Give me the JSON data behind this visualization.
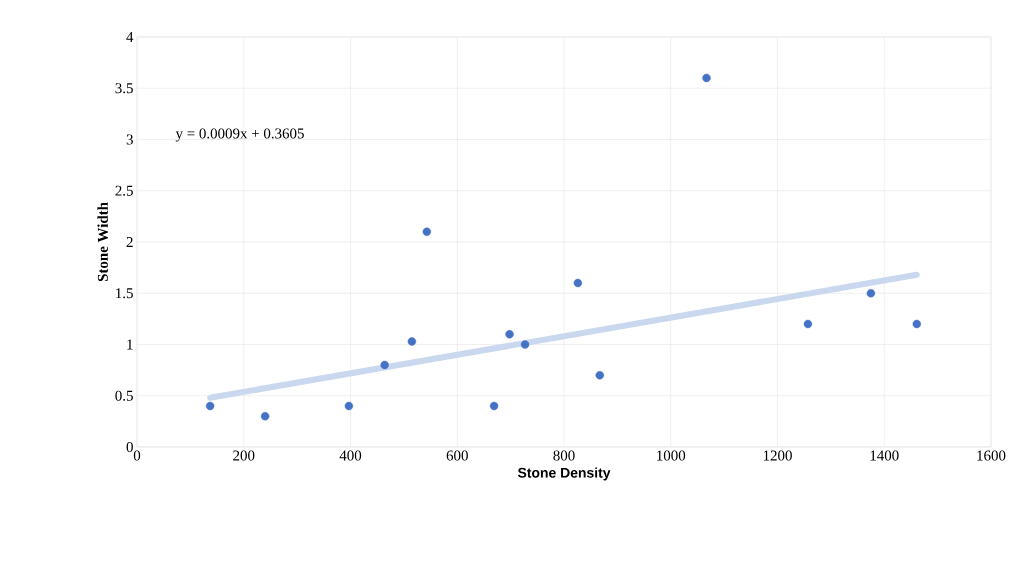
{
  "chart_data": {
    "type": "scatter",
    "xlabel": "Stone Density",
    "ylabel": "Stone Width",
    "annotations": [
      "y = 0.0009x + 0.3605"
    ],
    "xlim": [
      0,
      1600
    ],
    "ylim": [
      0,
      4
    ],
    "xticks": [
      0,
      200,
      400,
      600,
      800,
      1000,
      1200,
      1400,
      1600
    ],
    "yticks": [
      0,
      0.5,
      1,
      1.5,
      2,
      2.5,
      3,
      3.5,
      4
    ],
    "grid": true,
    "marker": "circle",
    "series": [
      {
        "type": "line",
        "marker": "none",
        "color": "#c9d8ef",
        "x": [
          137,
          1461
        ],
        "values": [
          0.48,
          1.68
        ]
      },
      {
        "color": "#4472c4",
        "x": [
          137,
          240,
          397,
          464,
          515,
          543,
          669,
          698,
          727,
          826,
          867,
          1067,
          1257,
          1375,
          1461
        ],
        "values": [
          0.4,
          0.3,
          0.4,
          0.8,
          1.03,
          2.1,
          0.4,
          1.1,
          1.0,
          1.6,
          0.7,
          3.6,
          1.2,
          1.5,
          1.2
        ]
      }
    ]
  }
}
